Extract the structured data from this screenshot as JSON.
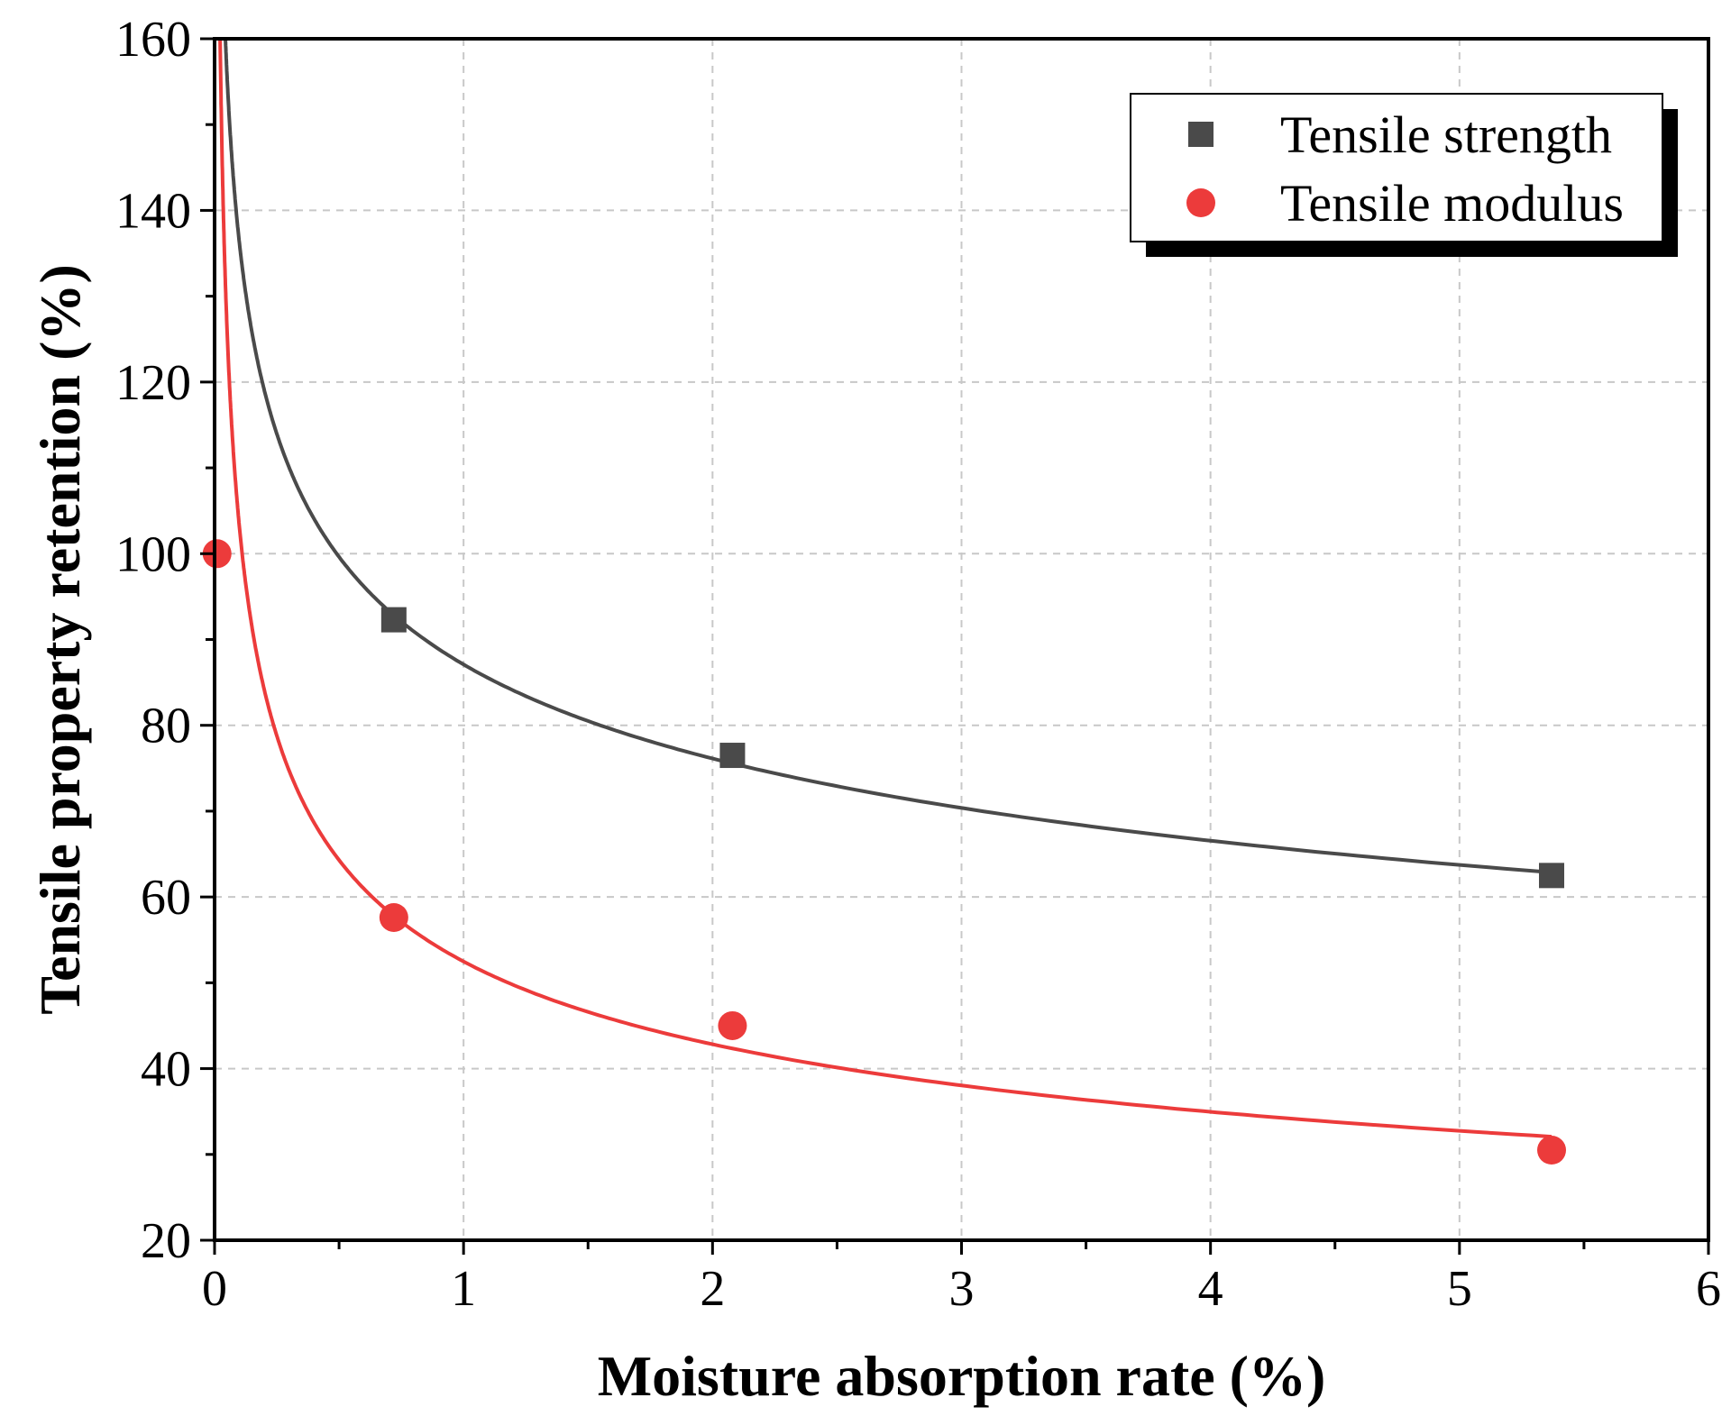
{
  "chart_data": {
    "type": "scatter",
    "title": "",
    "xlabel": "Moisture absorption rate (%)",
    "ylabel": "Tensile property retention (%)",
    "xlim": [
      0,
      6
    ],
    "ylim": [
      20,
      160
    ],
    "x_ticks": [
      0,
      1,
      2,
      3,
      4,
      5,
      6
    ],
    "y_ticks": [
      20,
      40,
      60,
      80,
      100,
      120,
      140,
      160
    ],
    "x_tick_labels": [
      "0",
      "1",
      "2",
      "3",
      "4",
      "5",
      "6"
    ],
    "y_tick_labels": [
      "20",
      "40",
      "60",
      "80",
      "100",
      "120",
      "140",
      "160"
    ],
    "grid": true,
    "legend_position": "top-right",
    "series": [
      {
        "name": "Tensile strength",
        "marker": "square",
        "color": "#4a4a4a",
        "x": [
          0.72,
          2.08,
          5.37
        ],
        "y": [
          92.3,
          76.5,
          62.5
        ],
        "fit": {
          "type": "power",
          "a": 87.09,
          "b": -0.194
        }
      },
      {
        "name": "Tensile modulus",
        "marker": "circle",
        "color": "#ec3b3b",
        "x": [
          0.01,
          0.72,
          2.08,
          5.37
        ],
        "y": [
          100,
          57.6,
          45.0,
          30.5
        ],
        "fit": {
          "type": "power",
          "a": 52.48,
          "b": -0.293
        }
      }
    ]
  }
}
